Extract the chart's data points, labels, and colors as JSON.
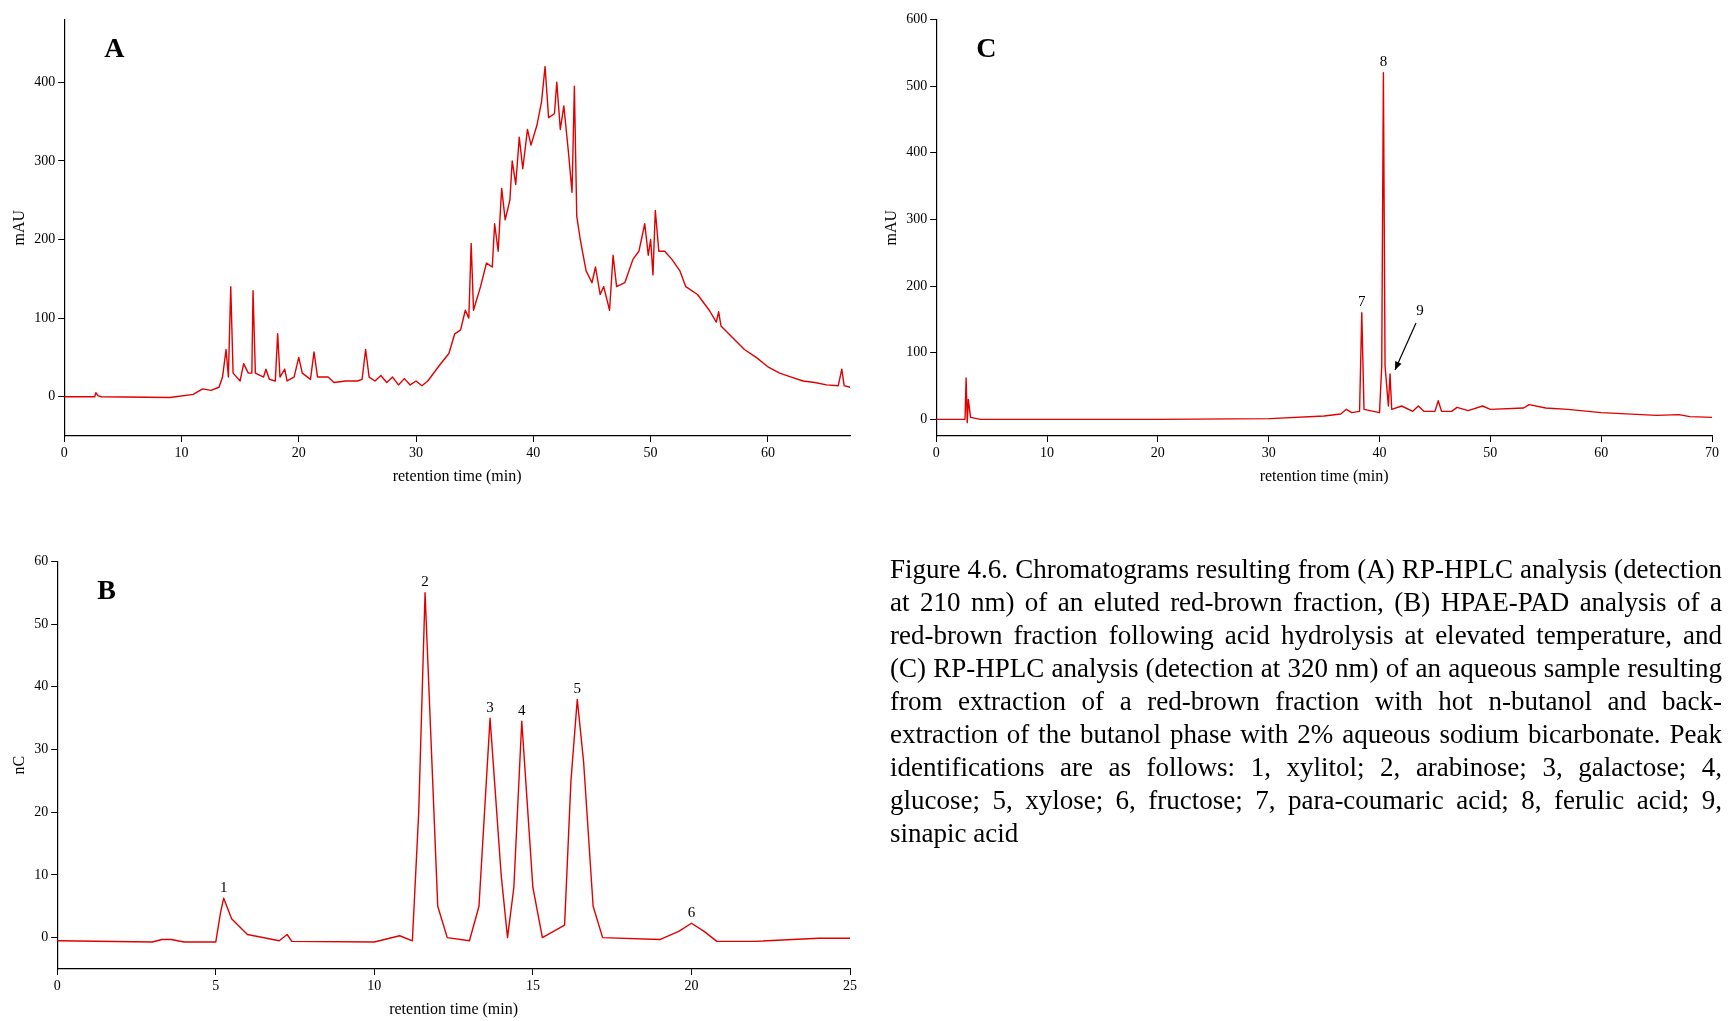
{
  "chart_data": [
    {
      "type": "line",
      "title": "A",
      "xlabel": "retention time (min)",
      "ylabel": "mAU",
      "xlim": [
        0,
        67
      ],
      "xticks": [
        0,
        10,
        20,
        30,
        40,
        50,
        60
      ],
      "ylim": [
        -50,
        480
      ],
      "yticks": [
        0,
        100,
        200,
        300,
        400
      ],
      "grid": false,
      "legend": false,
      "marker": "none",
      "line_style": "solid",
      "series": [
        {
          "color": "#e00000",
          "x": [
            0,
            2.6,
            2.7,
            2.9,
            3.2,
            9,
            9.5,
            11,
            11.8,
            12.5,
            13.2,
            13.5,
            13.8,
            14,
            14.2,
            14.4,
            15,
            15.3,
            15.7,
            16,
            16.1,
            16.3,
            17,
            17.2,
            17.5,
            18,
            18.2,
            18.4,
            18.8,
            19,
            19.6,
            20,
            20.3,
            21,
            21.3,
            21.6,
            22.5,
            23,
            24,
            25,
            25.4,
            25.7,
            26,
            26.5,
            27,
            27.5,
            28,
            28.5,
            29,
            29.5,
            30,
            30.5,
            31,
            32,
            32.8,
            33.3,
            33.8,
            34.2,
            34.5,
            34.7,
            34.9,
            35.5,
            36,
            36.5,
            36.7,
            37,
            37.3,
            37.6,
            38,
            38.2,
            38.5,
            38.8,
            39.1,
            39.5,
            39.8,
            40.3,
            40.7,
            41,
            41.3,
            41.8,
            42,
            42.3,
            42.6,
            43,
            43.3,
            43.5,
            43.7,
            44,
            44.5,
            45,
            45.3,
            45.7,
            46,
            46.5,
            46.8,
            47.1,
            47.8,
            48.5,
            49,
            49.5,
            49.8,
            50,
            50.2,
            50.4,
            50.7,
            51.2,
            51.8,
            52.5,
            53,
            54,
            55,
            55.6,
            55.8,
            56,
            57,
            58,
            59,
            60,
            61,
            62,
            63,
            64,
            65,
            66,
            66.3,
            66.5,
            67
          ],
          "values": [
            0,
            0,
            5,
            1,
            0,
            -1,
            0,
            3,
            10,
            8,
            12,
            25,
            60,
            25,
            140,
            30,
            20,
            42,
            30,
            30,
            135,
            30,
            25,
            35,
            22,
            20,
            80,
            25,
            35,
            20,
            25,
            50,
            30,
            22,
            57,
            25,
            25,
            18,
            20,
            20,
            22,
            60,
            25,
            20,
            27,
            18,
            25,
            15,
            23,
            15,
            20,
            14,
            20,
            40,
            55,
            80,
            85,
            110,
            100,
            195,
            110,
            140,
            170,
            165,
            220,
            185,
            265,
            225,
            250,
            300,
            270,
            330,
            290,
            340,
            320,
            345,
            375,
            420,
            355,
            360,
            400,
            340,
            370,
            310,
            260,
            395,
            230,
            200,
            160,
            145,
            165,
            130,
            140,
            110,
            180,
            140,
            145,
            175,
            185,
            220,
            180,
            200,
            155,
            237,
            185,
            185,
            175,
            160,
            140,
            130,
            110,
            95,
            108,
            90,
            75,
            60,
            50,
            38,
            30,
            25,
            20,
            18,
            15,
            14,
            35,
            14,
            12
          ]
        }
      ]
    },
    {
      "type": "line",
      "title": "C",
      "xlabel": "retention time (min)",
      "ylabel": "mAU",
      "xlim": [
        0,
        70
      ],
      "xticks": [
        0,
        10,
        20,
        30,
        40,
        50,
        60,
        70
      ],
      "ylim": [
        -25,
        600
      ],
      "yticks": [
        0,
        100,
        200,
        300,
        400,
        500,
        600
      ],
      "grid": false,
      "legend": false,
      "marker": "none",
      "line_style": "solid",
      "annotations": [
        {
          "text": "7",
          "x": 38.4,
          "y": 160
        },
        {
          "text": "8",
          "x": 40.35,
          "y": 520
        },
        {
          "text": "9",
          "x": 40.95,
          "y": 68
        }
      ],
      "series": [
        {
          "color": "#e00000",
          "x": [
            0,
            2.6,
            2.7,
            2.8,
            2.9,
            3.1,
            4,
            20,
            30,
            35,
            36.5,
            37,
            37.5,
            38.2,
            38.4,
            38.6,
            40,
            40.2,
            40.35,
            40.5,
            40.8,
            40.95,
            41.1,
            42,
            43,
            43.5,
            44,
            45,
            45.3,
            45.6,
            46.5,
            47,
            48,
            49.3,
            50,
            53,
            53.5,
            55,
            57,
            60,
            65,
            67,
            68,
            70
          ],
          "values": [
            0,
            0,
            62,
            -5,
            30,
            3,
            0,
            0,
            1,
            5,
            8,
            15,
            10,
            12,
            160,
            15,
            10,
            80,
            520,
            80,
            20,
            68,
            15,
            20,
            12,
            20,
            12,
            12,
            28,
            12,
            12,
            18,
            13,
            20,
            15,
            17,
            22,
            17,
            15,
            10,
            6,
            7,
            4,
            3
          ]
        }
      ]
    },
    {
      "type": "line",
      "title": "B",
      "xlabel": "retention time (min)",
      "ylabel": "nC",
      "xlim": [
        0,
        25
      ],
      "xticks": [
        0,
        5,
        10,
        15,
        20,
        25
      ],
      "ylim": [
        -5,
        60
      ],
      "yticks": [
        0,
        10,
        20,
        30,
        40,
        50,
        60
      ],
      "grid": false,
      "legend": false,
      "marker": "none",
      "line_style": "solid",
      "annotations": [
        {
          "text": "1",
          "x": 5.25,
          "y": 6.3
        },
        {
          "text": "2",
          "x": 11.6,
          "y": 55
        },
        {
          "text": "3",
          "x": 13.65,
          "y": 35
        },
        {
          "text": "4",
          "x": 14.65,
          "y": 34.5
        },
        {
          "text": "5",
          "x": 16.4,
          "y": 38
        },
        {
          "text": "6",
          "x": 20,
          "y": 2.3
        }
      ],
      "series": [
        {
          "color": "#e00000",
          "x": [
            0,
            3,
            3.3,
            3.6,
            4,
            5,
            5.15,
            5.25,
            5.5,
            6,
            7,
            7.25,
            7.4,
            10,
            10.8,
            11.2,
            11.4,
            11.6,
            11.8,
            12,
            12.3,
            13,
            13.3,
            13.65,
            14,
            14.2,
            14.4,
            14.65,
            15,
            15.3,
            16,
            16.2,
            16.4,
            16.6,
            16.9,
            17.2,
            19,
            19.6,
            20,
            20.4,
            20.8,
            22,
            24,
            25
          ],
          "values": [
            -0.5,
            -0.7,
            -0.3,
            -0.3,
            -0.7,
            -0.7,
            4,
            6.3,
            3,
            0.5,
            -0.5,
            0.5,
            -0.6,
            -0.7,
            0.3,
            -0.5,
            20,
            55,
            30,
            5,
            0,
            -0.5,
            5,
            35,
            10,
            0,
            8,
            34.5,
            8,
            0,
            2,
            25,
            38,
            28,
            5,
            0,
            -0.3,
            1,
            2.3,
            1,
            -0.6,
            -0.6,
            -0.1,
            -0.1
          ]
        }
      ]
    },
    {
      "type": "other",
      "annotations": [
        "Figure 4.6. Chromatograms resulting from (A) RP-HPLC analysis (detection at 210 nm) of an eluted red-brown fraction, (B) HPAE-PAD analysis of a red-brown fraction following acid hydrolysis at elevated temperature, and (C) RP-HPLC analysis (detection at 320 nm) of an aqueous sample resulting from extraction of a red-brown fraction with hot n-butanol and back-extraction of the butanol phase with 2% aqueous sodium bicarbonate. Peak identifications are as follows: 1, xylitol; 2, arabinose; 3, galactose; 4, glucose; 5, xylose; 6, fructose; 7, para-coumaric acid; 8, ferulic acid; 9, sinapic acid"
      ]
    }
  ]
}
